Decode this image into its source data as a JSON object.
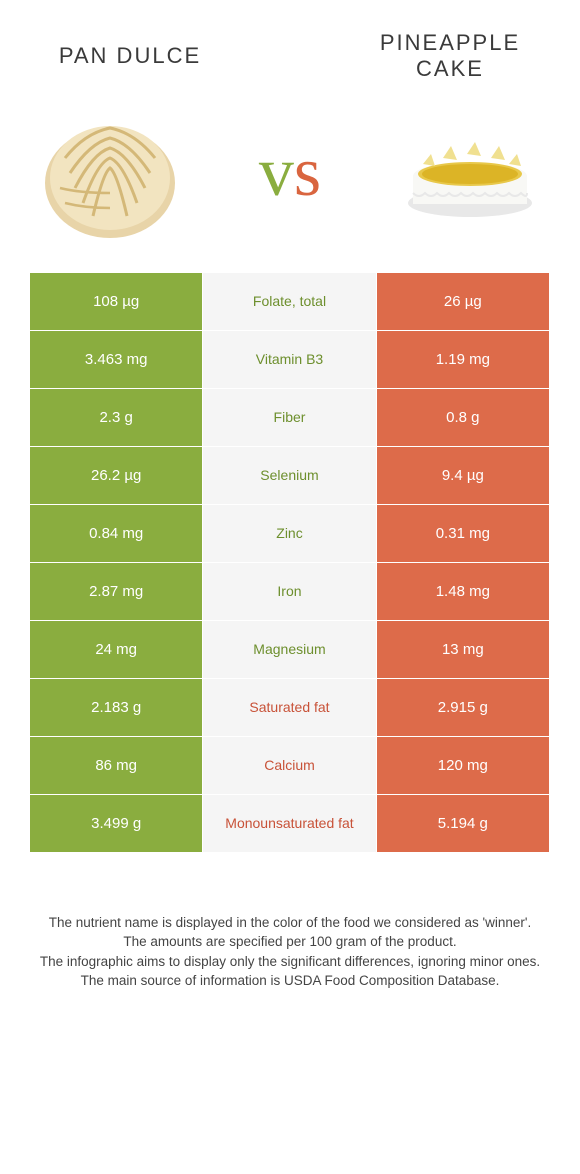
{
  "left_title": "Pan dulce",
  "right_title": "Pineapple cake",
  "vs_left": "v",
  "vs_right": "s",
  "colors": {
    "left_bg": "#8aad3f",
    "right_bg": "#dd6b4a",
    "mid_bg": "#f5f5f5",
    "left_text": "#6d8f2d",
    "right_text": "#c85238"
  },
  "rows": [
    {
      "left": "108 µg",
      "label": "Folate, total",
      "right": "26 µg",
      "winner": "left"
    },
    {
      "left": "3.463 mg",
      "label": "Vitamin B3",
      "right": "1.19 mg",
      "winner": "left"
    },
    {
      "left": "2.3 g",
      "label": "Fiber",
      "right": "0.8 g",
      "winner": "left"
    },
    {
      "left": "26.2 µg",
      "label": "Selenium",
      "right": "9.4 µg",
      "winner": "left"
    },
    {
      "left": "0.84 mg",
      "label": "Zinc",
      "right": "0.31 mg",
      "winner": "left"
    },
    {
      "left": "2.87 mg",
      "label": "Iron",
      "right": "1.48 mg",
      "winner": "left"
    },
    {
      "left": "24 mg",
      "label": "Magnesium",
      "right": "13 mg",
      "winner": "left"
    },
    {
      "left": "2.183 g",
      "label": "Saturated fat",
      "right": "2.915 g",
      "winner": "right"
    },
    {
      "left": "86 mg",
      "label": "Calcium",
      "right": "120 mg",
      "winner": "right"
    },
    {
      "left": "3.499 g",
      "label": "Monounsaturated fat",
      "right": "5.194 g",
      "winner": "right"
    }
  ],
  "footer": [
    "The nutrient name is displayed in the color of the food we considered as 'winner'.",
    "The amounts are specified per 100 gram of the product.",
    "The infographic aims to display only the significant differences, ignoring minor ones.",
    "The main source of information is USDA Food Composition Database."
  ]
}
